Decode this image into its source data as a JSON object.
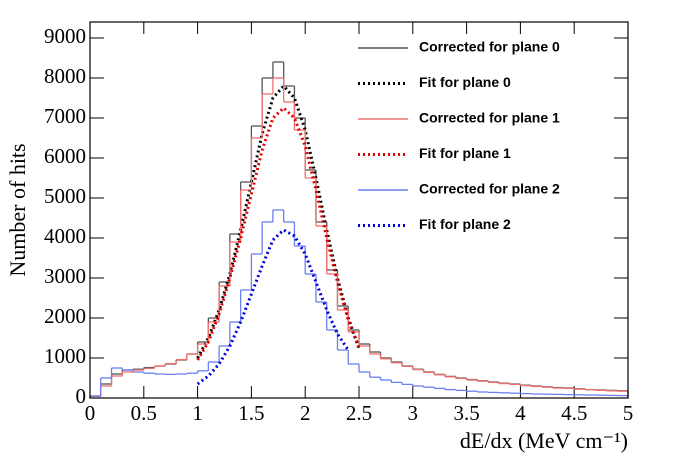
{
  "chart_data": {
    "type": "histogram",
    "x_label": "dE/dx (MeV cm⁻¹)",
    "y_label": "Number of hits",
    "xlim": [
      0,
      5
    ],
    "ylim": [
      0,
      9400
    ],
    "xticks": [
      0,
      0.5,
      1,
      1.5,
      2,
      2.5,
      3,
      3.5,
      4,
      4.5,
      5
    ],
    "yticks": [
      0,
      1000,
      2000,
      3000,
      4000,
      5000,
      6000,
      7000,
      8000,
      9000
    ],
    "bins": [
      0,
      0.1,
      0.2,
      0.3,
      0.4,
      0.5,
      0.6,
      0.7,
      0.8,
      0.9,
      1,
      1.1,
      1.2,
      1.3,
      1.4,
      1.5,
      1.6,
      1.7,
      1.8,
      1.9,
      2,
      2.1,
      2.2,
      2.3,
      2.4,
      2.5,
      2.6,
      2.7,
      2.8,
      2.9,
      3,
      3.1,
      3.2,
      3.3,
      3.4,
      3.5,
      3.6,
      3.7,
      3.8,
      3.9,
      4,
      4.1,
      4.2,
      4.3,
      4.4,
      4.5,
      4.6,
      4.7,
      4.8,
      4.9,
      5
    ],
    "legend": "upper right",
    "series": [
      {
        "name": "Corrected for plane 0",
        "type": "histogram",
        "color": "#555555",
        "line_style": "solid",
        "values": [
          50,
          350,
          600,
          700,
          720,
          760,
          800,
          850,
          950,
          1100,
          1400,
          2000,
          2900,
          4100,
          5400,
          6800,
          8000,
          8400,
          7800,
          7000,
          5700,
          4400,
          3200,
          2300,
          1700,
          1350,
          1150,
          1000,
          900,
          800,
          720,
          650,
          590,
          540,
          500,
          460,
          430,
          400,
          370,
          350,
          320,
          300,
          280,
          260,
          250,
          230,
          210,
          200,
          190,
          180
        ]
      },
      {
        "name": "Fit for plane 0",
        "type": "line",
        "color": "#000000",
        "line_style": "dotted",
        "x": [
          1,
          1.1,
          1.2,
          1.3,
          1.4,
          1.5,
          1.6,
          1.7,
          1.8,
          1.9,
          2,
          2.1,
          2.2,
          2.3,
          2.4,
          2.5
        ],
        "values": [
          1000,
          1500,
          2200,
          3100,
          4200,
          5400,
          6600,
          7500,
          7800,
          7500,
          6700,
          5500,
          4200,
          3000,
          2000,
          1250
        ]
      },
      {
        "name": "Corrected for plane 1",
        "type": "histogram",
        "color": "#f07070",
        "line_style": "solid",
        "values": [
          50,
          300,
          550,
          650,
          700,
          740,
          800,
          860,
          960,
          1100,
          1350,
          1900,
          2800,
          3900,
          5200,
          6500,
          7600,
          8000,
          7400,
          6700,
          5500,
          4300,
          3100,
          2200,
          1650,
          1300,
          1100,
          980,
          880,
          790,
          710,
          640,
          580,
          530,
          490,
          450,
          420,
          390,
          360,
          340,
          310,
          290,
          270,
          250,
          240,
          220,
          210,
          190,
          180,
          170
        ]
      },
      {
        "name": "Fit for plane 1",
        "type": "line",
        "color": "#e00000",
        "line_style": "dotted",
        "x": [
          1,
          1.1,
          1.2,
          1.3,
          1.4,
          1.5,
          1.6,
          1.7,
          1.8,
          1.9,
          2,
          2.1,
          2.2,
          2.3,
          2.4,
          2.5
        ],
        "values": [
          950,
          1400,
          2100,
          3000,
          4000,
          5100,
          6200,
          7000,
          7250,
          7000,
          6300,
          5200,
          4000,
          2900,
          1950,
          1250
        ]
      },
      {
        "name": "Corrected for plane 2",
        "type": "histogram",
        "color": "#6a7ff0",
        "line_style": "solid",
        "values": [
          40,
          500,
          750,
          700,
          650,
          620,
          600,
          590,
          600,
          620,
          680,
          900,
          1300,
          1900,
          2700,
          3600,
          4400,
          4700,
          4400,
          3800,
          3100,
          2400,
          1700,
          1200,
          850,
          650,
          520,
          450,
          390,
          340,
          300,
          270,
          240,
          210,
          190,
          170,
          150,
          140,
          130,
          120,
          110,
          100,
          95,
          90,
          85,
          80,
          75,
          70,
          65,
          60
        ]
      },
      {
        "name": "Fit for plane 2",
        "type": "line",
        "color": "#0000e0",
        "line_style": "dotted",
        "x": [
          1,
          1.1,
          1.2,
          1.3,
          1.4,
          1.5,
          1.6,
          1.7,
          1.8,
          1.9,
          2,
          2.1,
          2.2,
          2.3,
          2.4
        ],
        "values": [
          350,
          550,
          850,
          1300,
          1900,
          2600,
          3300,
          3950,
          4200,
          4050,
          3600,
          2900,
          2200,
          1600,
          1200
        ]
      }
    ]
  }
}
